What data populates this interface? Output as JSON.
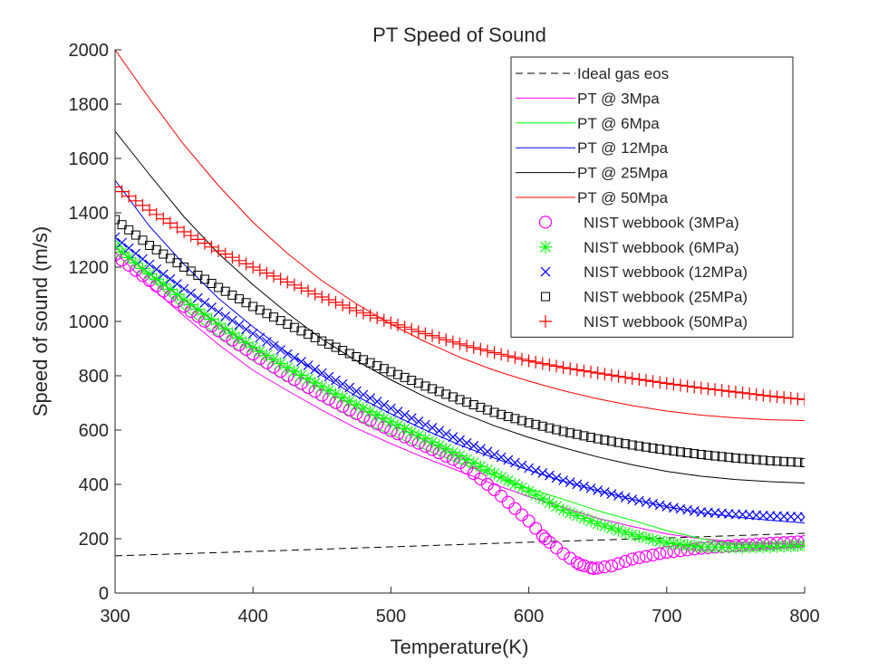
{
  "chart_data": {
    "type": "line",
    "title": "PT Speed of Sound",
    "xlabel": "Temperature(K)",
    "ylabel": "Speed of sound (m/s)",
    "xlim": [
      300,
      800
    ],
    "ylim": [
      0,
      2000
    ],
    "xticks": [
      300,
      400,
      500,
      600,
      700,
      800
    ],
    "yticks": [
      0,
      200,
      400,
      600,
      800,
      1000,
      1200,
      1400,
      1600,
      1800,
      2000
    ],
    "grid": false,
    "legend_position": "top-right",
    "series": [
      {
        "name": "Ideal gas eos",
        "kind": "line",
        "style": "dashed",
        "color": "#000000",
        "x": [
          300,
          400,
          500,
          600,
          700,
          800
        ],
        "y": [
          137,
          153,
          170,
          187,
          203,
          220
        ]
      },
      {
        "name": "PT @ 3Mpa",
        "kind": "line",
        "color": "#ff00ff",
        "x": [
          300,
          325,
          350,
          375,
          400,
          425,
          450,
          475,
          500,
          525,
          550,
          575,
          600,
          625,
          650,
          675,
          700,
          725,
          750,
          775,
          800
        ],
        "y": [
          1255,
          1130,
          1020,
          915,
          820,
          745,
          673,
          607,
          550,
          497,
          448,
          400,
          355,
          315,
          275,
          245,
          218,
          200,
          188,
          182,
          177
        ]
      },
      {
        "name": "PT @ 6Mpa",
        "kind": "line",
        "color": "#00ff00",
        "x": [
          300,
          325,
          350,
          375,
          400,
          425,
          450,
          475,
          500,
          525,
          550,
          575,
          600,
          625,
          650,
          675,
          700,
          725,
          750,
          775,
          800
        ],
        "y": [
          1300,
          1160,
          1045,
          945,
          855,
          778,
          705,
          640,
          583,
          528,
          478,
          432,
          385,
          345,
          303,
          268,
          230,
          200,
          180,
          172,
          170
        ]
      },
      {
        "name": "PT @ 12Mpa",
        "kind": "line",
        "color": "#0000ff",
        "x": [
          300,
          325,
          350,
          375,
          400,
          425,
          450,
          475,
          500,
          525,
          550,
          575,
          600,
          625,
          650,
          675,
          700,
          725,
          750,
          775,
          800
        ],
        "y": [
          1520,
          1350,
          1210,
          1085,
          980,
          885,
          800,
          725,
          660,
          600,
          545,
          497,
          452,
          412,
          377,
          345,
          318,
          296,
          280,
          268,
          258
        ]
      },
      {
        "name": "PT @ 25Mpa",
        "kind": "line",
        "color": "#000000",
        "x": [
          300,
          325,
          350,
          375,
          400,
          425,
          450,
          475,
          500,
          525,
          550,
          575,
          600,
          625,
          650,
          675,
          700,
          725,
          750,
          775,
          800
        ],
        "y": [
          1700,
          1540,
          1385,
          1250,
          1135,
          1030,
          935,
          855,
          785,
          722,
          666,
          616,
          573,
          535,
          501,
          472,
          448,
          430,
          418,
          410,
          405
        ]
      },
      {
        "name": "PT @ 50Mpa",
        "kind": "line",
        "color": "#ff0000",
        "x": [
          300,
          325,
          350,
          375,
          400,
          425,
          450,
          475,
          500,
          525,
          550,
          575,
          600,
          625,
          650,
          675,
          700,
          725,
          750,
          775,
          800
        ],
        "y": [
          2000,
          1820,
          1650,
          1500,
          1365,
          1250,
          1150,
          1065,
          990,
          925,
          868,
          820,
          780,
          745,
          715,
          690,
          670,
          655,
          645,
          638,
          635
        ]
      },
      {
        "name": "NIST webbook (3MPa)",
        "kind": "marker",
        "marker": "circle",
        "color": "#ff00ff",
        "x": [
          300,
          325,
          350,
          375,
          400,
          425,
          450,
          475,
          500,
          525,
          550,
          575,
          600,
          612,
          625,
          637,
          647,
          660,
          675,
          700,
          725,
          750,
          775,
          800
        ],
        "y": [
          1245,
          1150,
          1055,
          965,
          880,
          800,
          728,
          660,
          598,
          540,
          480,
          380,
          265,
          200,
          145,
          105,
          90,
          100,
          125,
          150,
          165,
          175,
          183,
          190
        ]
      },
      {
        "name": "NIST webbook (6MPa)",
        "kind": "marker",
        "marker": "asterisk",
        "color": "#00ff00",
        "x": [
          300,
          325,
          350,
          375,
          400,
          425,
          450,
          475,
          500,
          525,
          550,
          575,
          600,
          625,
          650,
          675,
          700,
          725,
          750,
          775,
          800
        ],
        "y": [
          1275,
          1175,
          1080,
          990,
          905,
          830,
          760,
          693,
          630,
          568,
          505,
          440,
          375,
          305,
          255,
          215,
          185,
          170,
          168,
          170,
          175
        ]
      },
      {
        "name": "NIST webbook (12MPa)",
        "kind": "marker",
        "marker": "x",
        "color": "#0000ff",
        "x": [
          300,
          325,
          350,
          375,
          400,
          425,
          450,
          475,
          500,
          525,
          550,
          575,
          600,
          625,
          650,
          675,
          700,
          725,
          750,
          775,
          800
        ],
        "y": [
          1310,
          1210,
          1120,
          1035,
          955,
          880,
          810,
          743,
          680,
          620,
          563,
          510,
          460,
          415,
          378,
          345,
          318,
          298,
          290,
          284,
          280
        ]
      },
      {
        "name": "NIST webbook (25MPa)",
        "kind": "marker",
        "marker": "square",
        "color": "#000000",
        "x": [
          300,
          325,
          350,
          375,
          400,
          425,
          450,
          475,
          500,
          525,
          550,
          575,
          600,
          625,
          650,
          675,
          700,
          725,
          750,
          775,
          800
        ],
        "y": [
          1375,
          1280,
          1200,
          1125,
          1055,
          990,
          928,
          870,
          815,
          762,
          712,
          665,
          627,
          595,
          568,
          545,
          526,
          510,
          497,
          487,
          480
        ]
      },
      {
        "name": "NIST webbook (50MPa)",
        "kind": "marker",
        "marker": "plus",
        "color": "#ff0000",
        "x": [
          300,
          325,
          350,
          375,
          400,
          425,
          450,
          475,
          500,
          525,
          550,
          575,
          600,
          625,
          650,
          675,
          700,
          725,
          750,
          775,
          800
        ],
        "y": [
          1495,
          1410,
          1330,
          1260,
          1200,
          1145,
          1090,
          1040,
          995,
          955,
          917,
          885,
          855,
          830,
          810,
          790,
          772,
          755,
          740,
          725,
          712
        ]
      }
    ]
  }
}
